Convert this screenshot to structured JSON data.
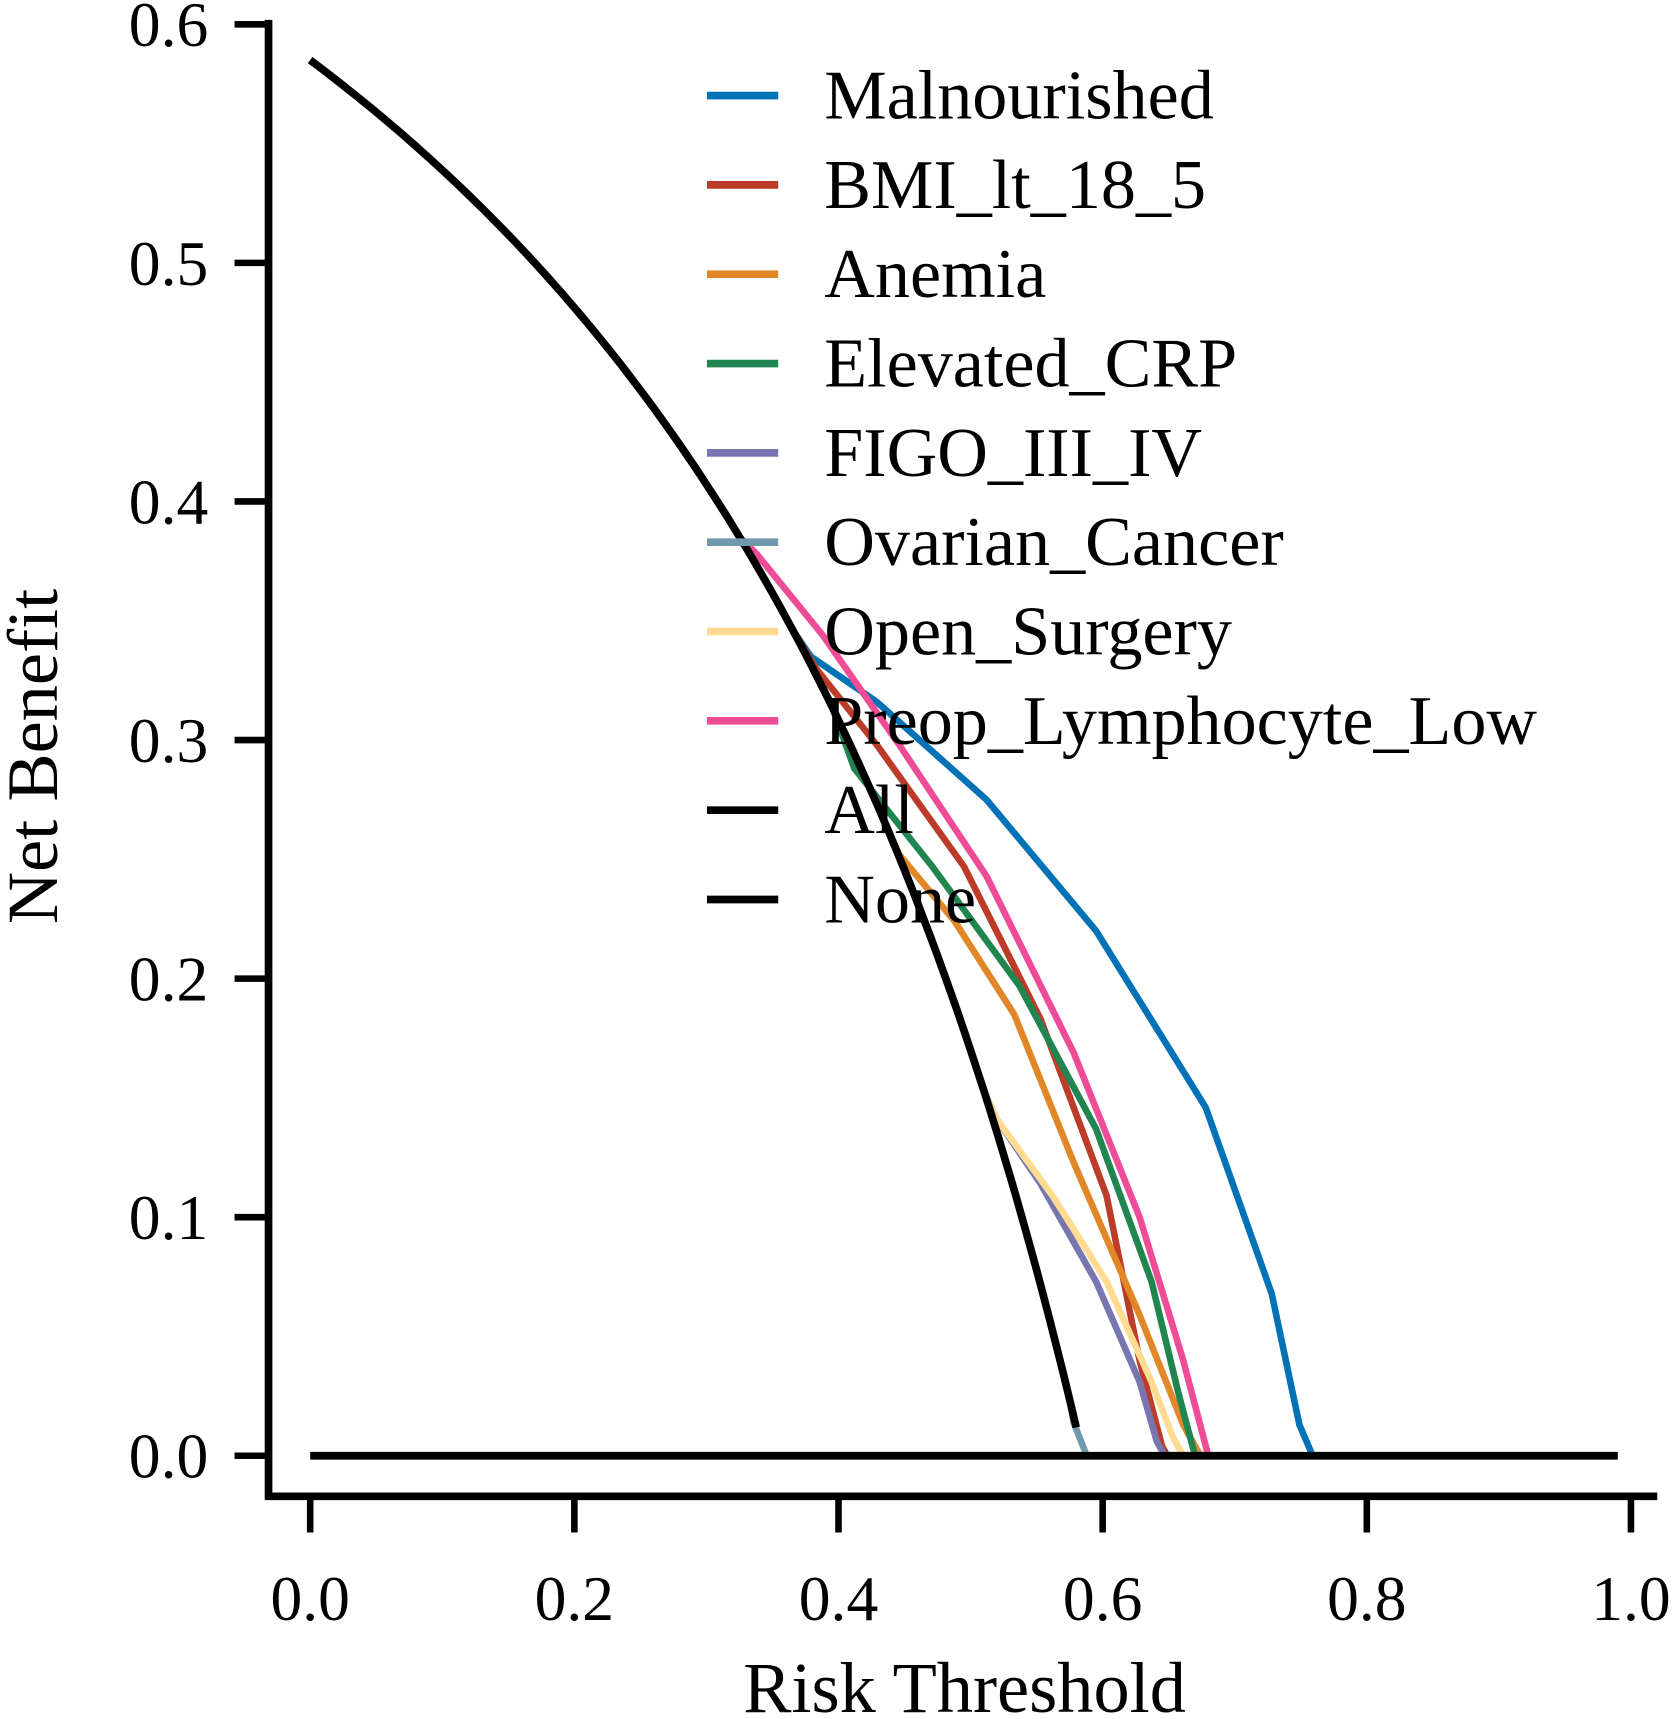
{
  "chart_data": {
    "type": "line",
    "title": "",
    "xlabel": "Risk Threshold",
    "ylabel": "Net Benefit",
    "xlim": [
      0,
      1
    ],
    "ylim": [
      0,
      0.6
    ],
    "xticks": [
      "0.0",
      "0.2",
      "0.4",
      "0.6",
      "0.8",
      "1.0"
    ],
    "yticks": [
      "0.0",
      "0.1",
      "0.2",
      "0.3",
      "0.4",
      "0.5",
      "0.6"
    ],
    "grid": false,
    "legend_position": "top-right",
    "prevalence": 0.585,
    "series": [
      {
        "name": "Malnourished",
        "color": "#0072B5",
        "start": 0.37,
        "points": [
          [
            0.379,
            0.335
          ],
          [
            0.429,
            0.316
          ],
          [
            0.512,
            0.275
          ],
          [
            0.595,
            0.22
          ],
          [
            0.678,
            0.146
          ],
          [
            0.728,
            0.068
          ],
          [
            0.749,
            0.013
          ],
          [
            0.759,
            0
          ]
        ]
      },
      {
        "name": "BMI_lt_18_5",
        "color": "#BC3C29",
        "start": 0.37,
        "points": [
          [
            0.383,
            0.33
          ],
          [
            0.429,
            0.298
          ],
          [
            0.495,
            0.247
          ],
          [
            0.553,
            0.183
          ],
          [
            0.603,
            0.109
          ],
          [
            0.628,
            0.04
          ],
          [
            0.645,
            0.004
          ],
          [
            0.649,
            0
          ]
        ]
      },
      {
        "name": "Anemia",
        "color": "#E18727",
        "start": 0.44,
        "points": [
          [
            0.446,
            0.252
          ],
          [
            0.488,
            0.224
          ],
          [
            0.533,
            0.185
          ],
          [
            0.578,
            0.123
          ],
          [
            0.628,
            0.059
          ],
          [
            0.661,
            0.013
          ],
          [
            0.674,
            0
          ]
        ]
      },
      {
        "name": "Elevated_CRP",
        "color": "#20854E",
        "start": 0.4,
        "points": [
          [
            0.412,
            0.288
          ],
          [
            0.471,
            0.247
          ],
          [
            0.537,
            0.197
          ],
          [
            0.595,
            0.137
          ],
          [
            0.637,
            0.073
          ],
          [
            0.657,
            0.027
          ],
          [
            0.67,
            0
          ]
        ]
      },
      {
        "name": "FIGO_III_IV",
        "color": "#7876B1",
        "start": 0.515,
        "points": [
          [
            0.52,
            0.141
          ],
          [
            0.553,
            0.114
          ],
          [
            0.595,
            0.073
          ],
          [
            0.628,
            0.031
          ],
          [
            0.641,
            0.006
          ],
          [
            0.647,
            0
          ]
        ]
      },
      {
        "name": "Ovarian_Cancer",
        "color": "#6F99AD",
        "start": 0.578,
        "points": [
          [
            0.578,
            0.014
          ],
          [
            0.588,
            0
          ]
        ]
      },
      {
        "name": "Open_Surgery",
        "color": "#FFDC91",
        "start": 0.515,
        "points": [
          [
            0.52,
            0.141
          ],
          [
            0.562,
            0.109
          ],
          [
            0.603,
            0.073
          ],
          [
            0.637,
            0.031
          ],
          [
            0.653,
            0.008
          ],
          [
            0.661,
            0
          ]
        ]
      },
      {
        "name": "Preop_Lymphocyte_Low",
        "color": "#EE4C97",
        "start": 0.33,
        "points": [
          [
            0.338,
            0.378
          ],
          [
            0.388,
            0.344
          ],
          [
            0.446,
            0.298
          ],
          [
            0.512,
            0.243
          ],
          [
            0.578,
            0.169
          ],
          [
            0.628,
            0.1
          ],
          [
            0.661,
            0.04
          ],
          [
            0.68,
            0
          ]
        ]
      },
      {
        "name": "All",
        "color": "#000000",
        "x_range": [
          0,
          0.58
        ]
      },
      {
        "name": "None",
        "color": "#000000",
        "x_range": [
          0,
          0.99
        ],
        "value": 0
      }
    ]
  }
}
